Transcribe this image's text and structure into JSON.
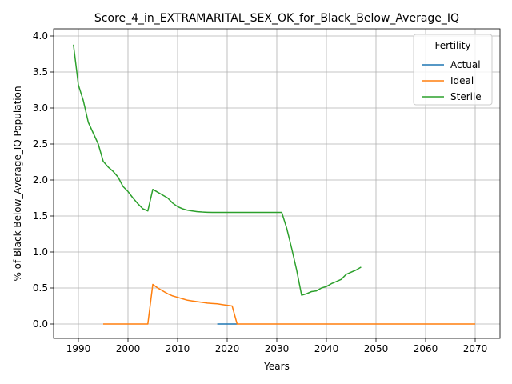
{
  "chart_data": {
    "type": "line",
    "title": "Score_4_in_EXTRAMARITAL_SEX_OK_for_Black_Below_Average_IQ",
    "xlabel": "Years",
    "ylabel": "% of Black Below_Average_IQ Population",
    "xlim": [
      1985,
      2075
    ],
    "ylim": [
      -0.2,
      4.1
    ],
    "xticks": [
      1990,
      2000,
      2010,
      2020,
      2030,
      2040,
      2050,
      2060,
      2070
    ],
    "yticks": [
      0.0,
      0.5,
      1.0,
      1.5,
      2.0,
      2.5,
      3.0,
      3.5,
      4.0
    ],
    "xtick_labels": [
      "1990",
      "2000",
      "2010",
      "2020",
      "2030",
      "2040",
      "2050",
      "2060",
      "2070"
    ],
    "ytick_labels": [
      "0.0",
      "0.5",
      "1.0",
      "1.5",
      "2.0",
      "2.5",
      "3.0",
      "3.5",
      "4.0"
    ],
    "grid": true,
    "legend": {
      "title": "Fertility",
      "position": "top-right"
    },
    "series": [
      {
        "name": "Actual",
        "color": "#1f77b4",
        "x": [
          2018,
          2019,
          2020,
          2021,
          2022
        ],
        "y": [
          0.0,
          0.0,
          0.0,
          0.0,
          0.0
        ]
      },
      {
        "name": "Ideal",
        "color": "#ff7f0e",
        "x": [
          1995,
          1996,
          1997,
          1998,
          1999,
          2000,
          2001,
          2002,
          2003,
          2004,
          2005,
          2006,
          2007,
          2008,
          2009,
          2010,
          2011,
          2012,
          2013,
          2014,
          2015,
          2016,
          2017,
          2018,
          2019,
          2020,
          2021,
          2022,
          2025,
          2030,
          2035,
          2040,
          2045,
          2050,
          2055,
          2060,
          2065,
          2070
        ],
        "y": [
          0.0,
          0.0,
          0.0,
          0.0,
          0.0,
          0.0,
          0.0,
          0.0,
          0.0,
          0.0,
          0.55,
          0.5,
          0.46,
          0.42,
          0.39,
          0.37,
          0.35,
          0.33,
          0.32,
          0.31,
          0.3,
          0.29,
          0.285,
          0.28,
          0.27,
          0.26,
          0.25,
          0.0,
          0.0,
          0.0,
          0.0,
          0.0,
          0.0,
          0.0,
          0.0,
          0.0,
          0.0,
          0.0
        ]
      },
      {
        "name": "Sterile",
        "color": "#2ca02c",
        "x": [
          1989,
          1990,
          1991,
          1992,
          1993,
          1994,
          1995,
          1996,
          1997,
          1998,
          1999,
          2000,
          2001,
          2002,
          2003,
          2004,
          2005,
          2006,
          2007,
          2008,
          2009,
          2010,
          2011,
          2012,
          2013,
          2014,
          2015,
          2016,
          2017,
          2018,
          2020,
          2025,
          2030,
          2031,
          2032,
          2033,
          2034,
          2035,
          2036,
          2037,
          2038,
          2039,
          2040,
          2041,
          2042,
          2043,
          2044,
          2045,
          2046,
          2047
        ],
        "y": [
          3.88,
          3.32,
          3.1,
          2.8,
          2.65,
          2.5,
          2.26,
          2.18,
          2.12,
          2.04,
          1.91,
          1.84,
          1.75,
          1.67,
          1.6,
          1.57,
          1.87,
          1.83,
          1.79,
          1.75,
          1.68,
          1.63,
          1.6,
          1.58,
          1.57,
          1.56,
          1.555,
          1.552,
          1.55,
          1.55,
          1.55,
          1.55,
          1.55,
          1.55,
          1.33,
          1.05,
          0.75,
          0.4,
          0.42,
          0.45,
          0.46,
          0.5,
          0.52,
          0.56,
          0.59,
          0.62,
          0.69,
          0.72,
          0.75,
          0.79
        ]
      }
    ]
  }
}
